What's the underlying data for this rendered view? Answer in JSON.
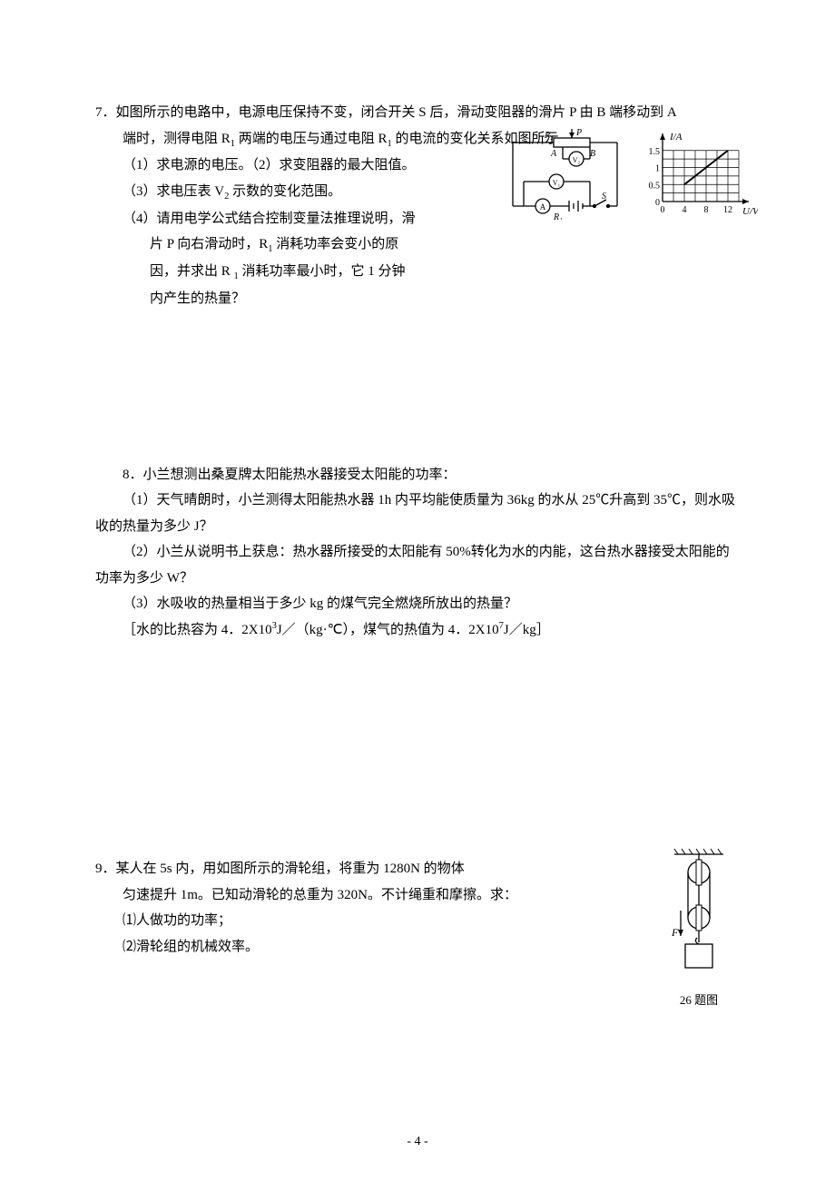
{
  "page_number": "- 4 -",
  "q7": {
    "number": "7．",
    "stem_a": "如图所示的电路中，电源电压保持不变，闭合开关 S 后，滑动变阻器的滑片 P 由 B 端移动到 A",
    "stem_b": "端时，测得电阻 R",
    "stem_b2": " 两端的电压与通过电阻 R",
    "stem_b3": " 的电流的变化关系如图所示。",
    "p1": "（1）求电源的电压。（2）求变阻器的最大阻值。",
    "p3": "（3）求电压表 V",
    "p3b": " 示数的变化范围。",
    "p4a": "（4）请用电学公式结合控制变量法推理说明，滑",
    "p4b": "片 P 向右滑动时，R",
    "p4b2": " 消耗功率会变小的原",
    "p4c": "因，并求出 R ",
    "p4c2": " 消耗功率最小时，它 1 分钟",
    "p4d": "内产生的热量？",
    "graph": {
      "type": "line",
      "x_label": "U/V",
      "y_label": "I/A",
      "x_ticks": [
        0,
        4,
        8,
        12
      ],
      "y_ticks": [
        0,
        0.5,
        1.0,
        1.5
      ],
      "xlim": [
        0,
        14
      ],
      "ylim": [
        0,
        1.6
      ],
      "grid_color": "#000000",
      "line_color": "#000000",
      "background": "#ffffff",
      "data_points": [
        [
          4,
          0.5
        ],
        [
          12,
          1.5
        ]
      ]
    },
    "circuit": {
      "labels": {
        "R2": "R₂",
        "P": "P",
        "A": "A",
        "B": "B",
        "V2": "V₂",
        "V1": "V₁",
        "Ameter": "A",
        "S": "S",
        "R1": "R₁"
      },
      "line_color": "#000000",
      "fill": "#ffffff"
    }
  },
  "q8": {
    "number": "8．",
    "stem": "小兰想测出桑夏牌太阳能热水器接受太阳能的功率：",
    "p1": "（1）天气晴朗时，小兰测得太阳能热水器 1h 内平均能使质量为 36kg 的水从 25℃升高到 35℃，则水吸收的热量为多少 J？",
    "p2": "（2）小兰从说明书上获息：热水器所接受的太阳能有 50%转化为水的内能，这台热水器接受太阳能的功率为多少 W？",
    "p3": "（3）水吸收的热量相当于多少 kg 的煤气完全燃烧所放出的热量？",
    "p4a": "［水的比热容为 4．2X10",
    "p4b": "J／（kg·℃），煤气的热值为 4．2X10",
    "p4c": "J／kg］"
  },
  "q9": {
    "number": "9．",
    "stem": "某人在 5s 内，用如图所示的滑轮组，将重为 1280N 的物体",
    "stem2": "匀速提升 1m。已知动滑轮的总重为 320N。不计绳重和摩擦。求：",
    "p1": "⑴人做功的功率；",
    "p2": "⑵滑轮组的机械效率。",
    "caption": "26 题图",
    "pulley": {
      "line_color": "#000000",
      "fill": "#ffffff",
      "F_label": "F"
    }
  }
}
